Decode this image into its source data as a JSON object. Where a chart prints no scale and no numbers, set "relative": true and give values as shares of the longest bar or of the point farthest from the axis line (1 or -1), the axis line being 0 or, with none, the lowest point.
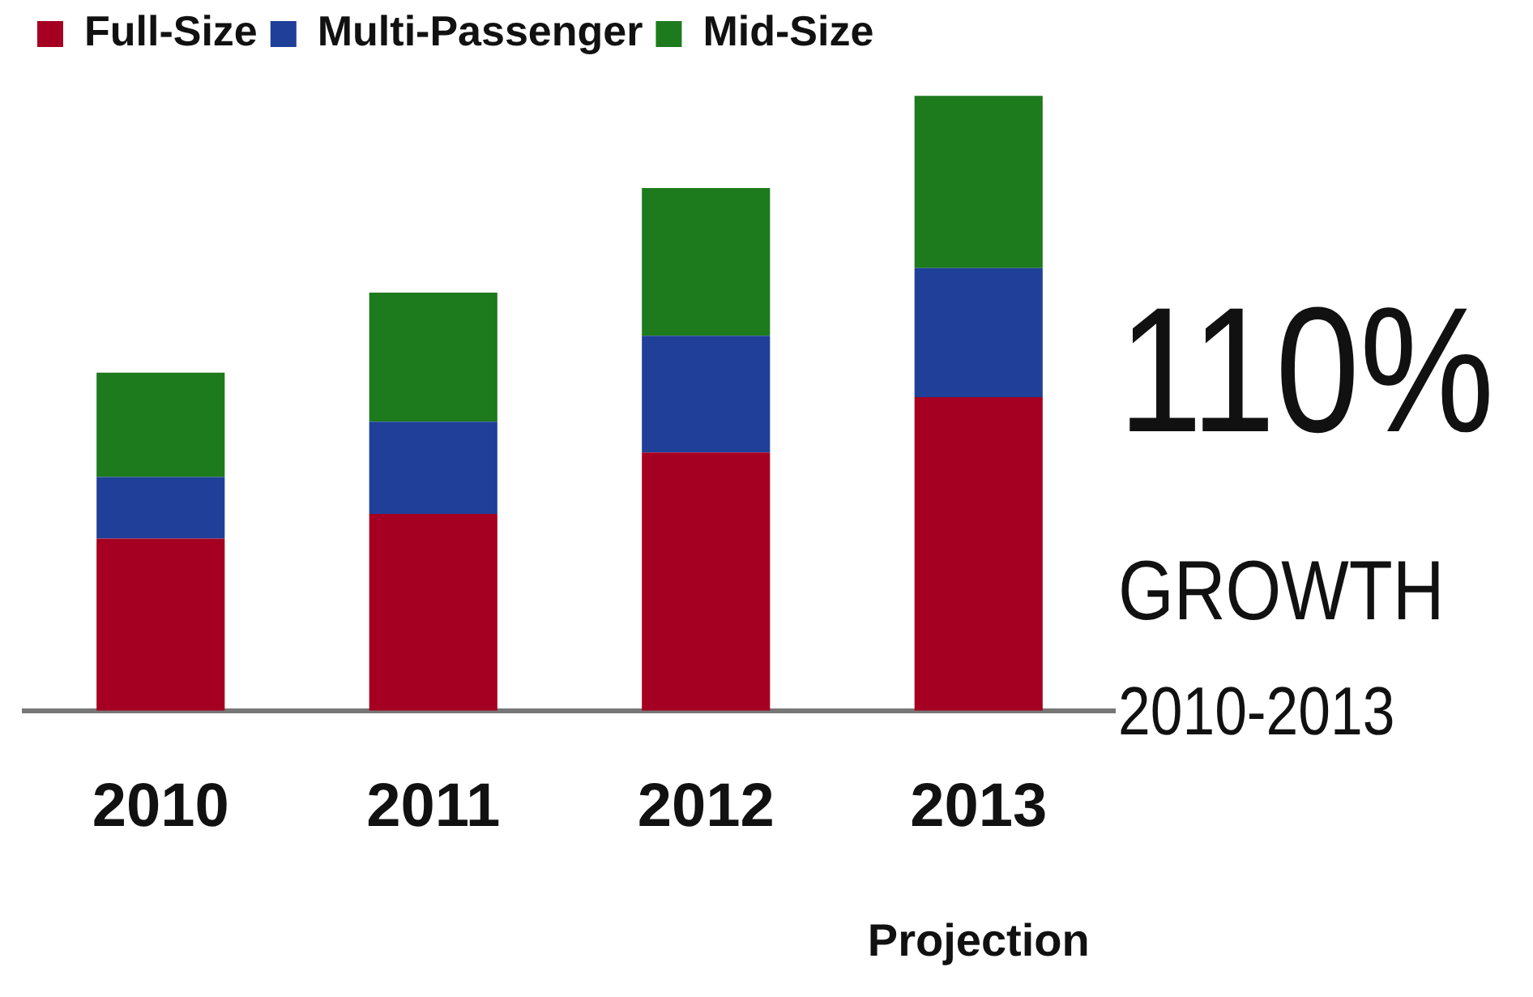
{
  "chart_data": {
    "type": "bar",
    "stacked": true,
    "relative": true,
    "legend": "top left",
    "categories": [
      "2010",
      "2011",
      "2012",
      "2013"
    ],
    "series": [
      {
        "name": "Full-Size",
        "color": "#a50021",
        "values": [
          0.28,
          0.32,
          0.42,
          0.51
        ]
      },
      {
        "name": "Multi-Passenger",
        "color": "#1f3f99",
        "values": [
          0.1,
          0.15,
          0.19,
          0.21
        ]
      },
      {
        "name": "Mid-Size",
        "color": "#1d7a1d",
        "values": [
          0.17,
          0.21,
          0.24,
          0.28
        ]
      }
    ],
    "annotations": [
      "110%",
      "GROWTH",
      "2010-2013",
      "Projection"
    ]
  }
}
